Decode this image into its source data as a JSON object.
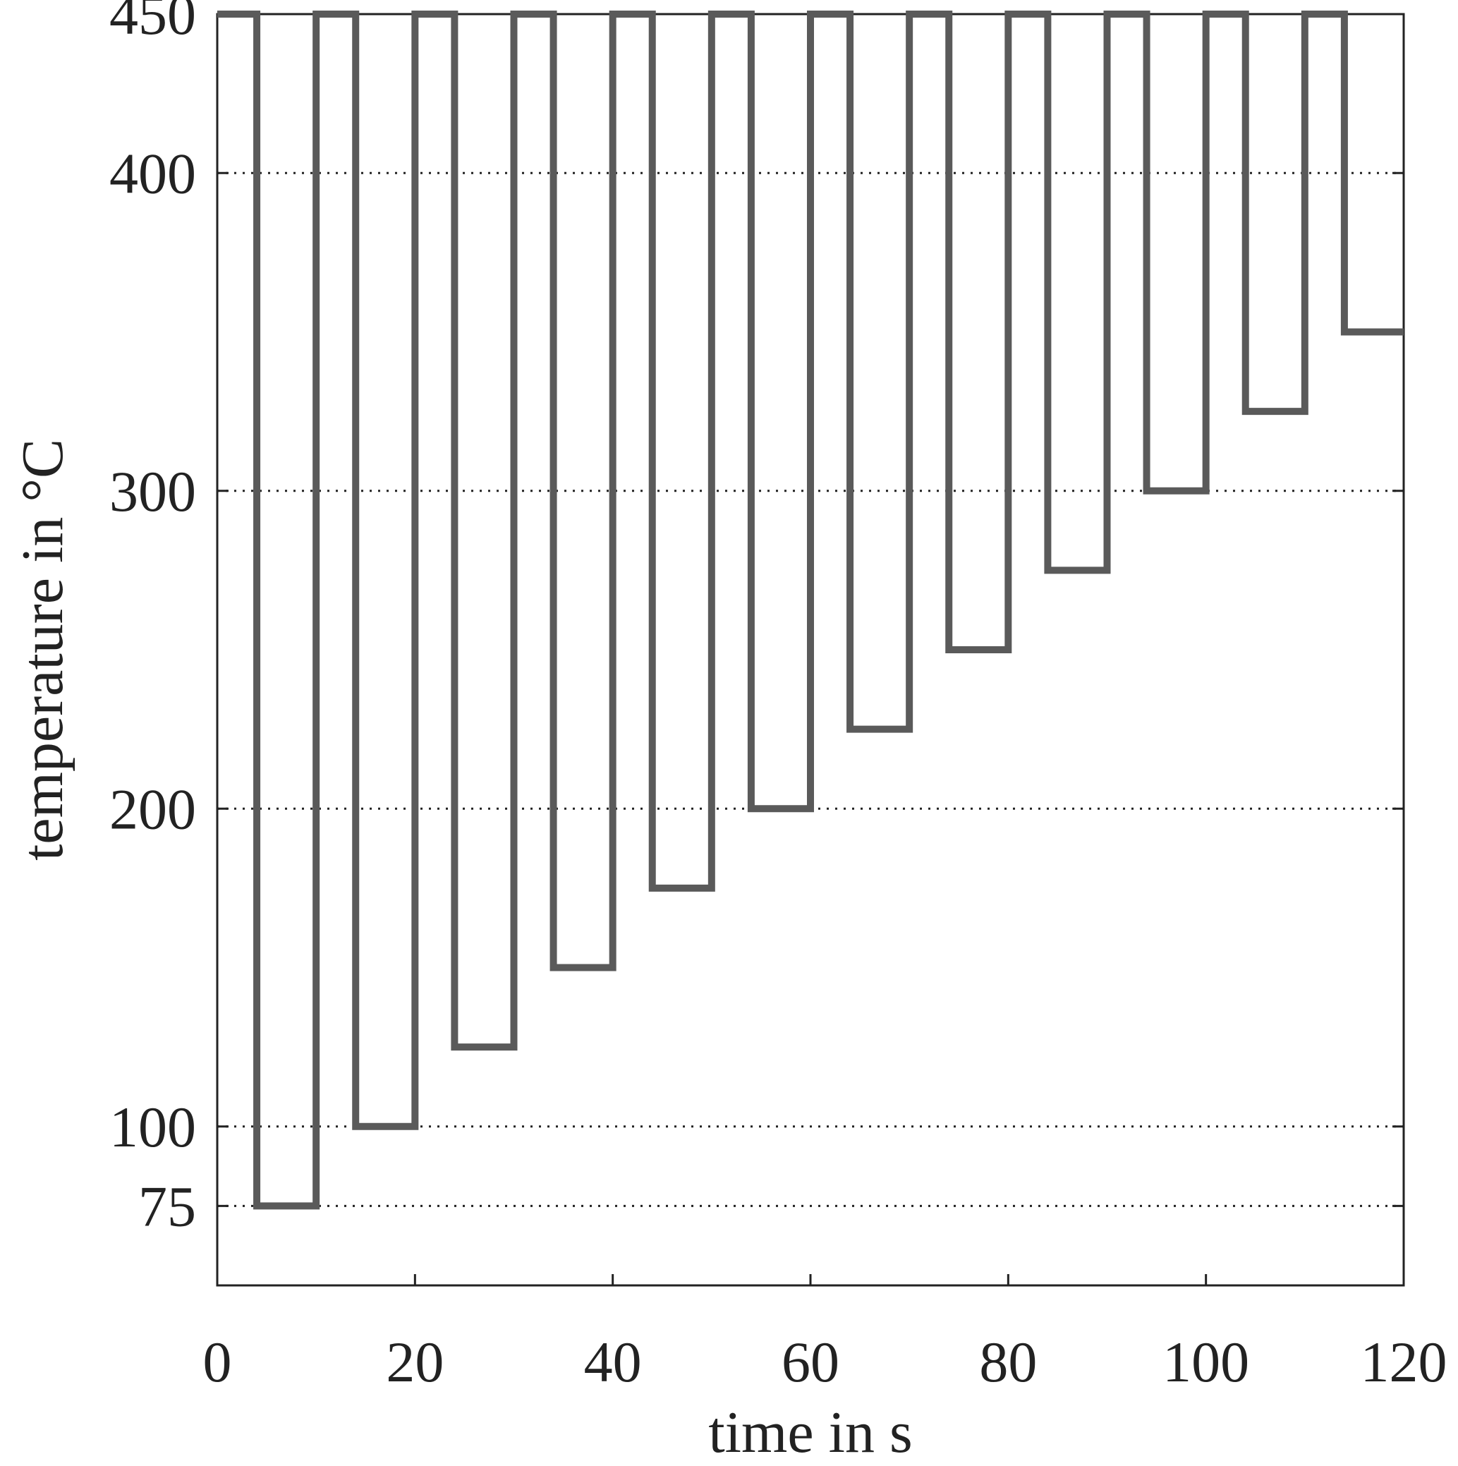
{
  "chart_data": {
    "type": "line",
    "title": "",
    "xlabel": "time in s",
    "ylabel": "temperature in °C",
    "xlim": [
      0,
      120
    ],
    "ylim": [
      50,
      450
    ],
    "xticks": [
      0,
      20,
      40,
      60,
      80,
      100,
      120
    ],
    "xtick_labels": [
      "0",
      "20",
      "40",
      "60",
      "80",
      "100",
      "120"
    ],
    "yticks": [
      75,
      100,
      200,
      300,
      400,
      450
    ],
    "ytick_labels": [
      "75",
      "100",
      "200",
      "300",
      "400",
      "450"
    ],
    "grid": "horizontal dotted",
    "line_style": "step",
    "series": [
      {
        "color": "#5a5a5a",
        "x": [
          0,
          4,
          4,
          10,
          10,
          14,
          14,
          20,
          20,
          24,
          24,
          30,
          30,
          34,
          34,
          40,
          40,
          44,
          44,
          50,
          50,
          54,
          54,
          60,
          60,
          64,
          64,
          70,
          70,
          74,
          74,
          80,
          80,
          84,
          84,
          90,
          90,
          94,
          94,
          100,
          100,
          104,
          104,
          110,
          110,
          114,
          114,
          120
        ],
        "y": [
          450,
          450,
          75,
          75,
          450,
          450,
          100,
          100,
          450,
          450,
          125,
          125,
          450,
          450,
          150,
          150,
          450,
          450,
          175,
          175,
          450,
          450,
          200,
          200,
          450,
          450,
          225,
          225,
          450,
          450,
          250,
          250,
          450,
          450,
          275,
          275,
          450,
          450,
          300,
          300,
          450,
          450,
          325,
          325,
          450,
          450,
          350,
          350
        ]
      }
    ]
  }
}
